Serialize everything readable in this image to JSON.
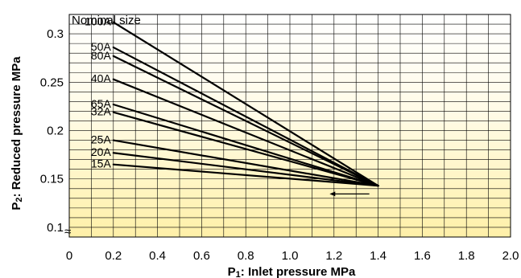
{
  "chart_data": {
    "type": "line",
    "xlabel_main": "P",
    "xlabel_sub": "1",
    "xlabel_rest": ": Inlet pressure MPa",
    "ylabel_main": "P",
    "ylabel_sub": "2",
    "ylabel_rest": ": Reduced pressure MPa",
    "legend_title": "Nominal size",
    "xlim": [
      0,
      2.0
    ],
    "ylim": [
      0.09,
      0.32
    ],
    "x_ticks": [
      "0",
      "0.2",
      "0.4",
      "0.6",
      "0.8",
      "1.0",
      "1.2",
      "1.4",
      "1.6",
      "1.8",
      "2.0"
    ],
    "y_ticks": [
      {
        "value": 0.1,
        "label": "0.1"
      },
      {
        "value": 0.15,
        "label": "0.15"
      },
      {
        "value": 0.2,
        "label": "0.2"
      },
      {
        "value": 0.25,
        "label": "0.25"
      },
      {
        "value": 0.3,
        "label": "0.3"
      }
    ],
    "grid": true,
    "converge_point": {
      "x": 1.4,
      "y": 0.143
    },
    "series": [
      {
        "name": "100A",
        "x": [
          0.2,
          1.4
        ],
        "y": [
          0.312,
          0.143
        ]
      },
      {
        "name": "50A",
        "x": [
          0.2,
          1.4
        ],
        "y": [
          0.286,
          0.143
        ]
      },
      {
        "name": "80A",
        "x": [
          0.2,
          1.4
        ],
        "y": [
          0.277,
          0.143
        ]
      },
      {
        "name": "40A",
        "x": [
          0.2,
          1.4
        ],
        "y": [
          0.253,
          0.143
        ]
      },
      {
        "name": "65A",
        "x": [
          0.2,
          1.4
        ],
        "y": [
          0.227,
          0.143
        ]
      },
      {
        "name": "32A",
        "x": [
          0.2,
          1.4
        ],
        "y": [
          0.219,
          0.143
        ]
      },
      {
        "name": "25A",
        "x": [
          0.2,
          1.4
        ],
        "y": [
          0.19,
          0.143
        ]
      },
      {
        "name": "20A",
        "x": [
          0.2,
          1.4
        ],
        "y": [
          0.177,
          0.143
        ]
      },
      {
        "name": "15A",
        "x": [
          0.2,
          1.4
        ],
        "y": [
          0.165,
          0.143
        ]
      }
    ],
    "annotation_arrow": {
      "x_from": 1.36,
      "x_to": 1.18,
      "y": 0.1345,
      "direction": "left"
    },
    "axis_break_symbol": "≈"
  }
}
